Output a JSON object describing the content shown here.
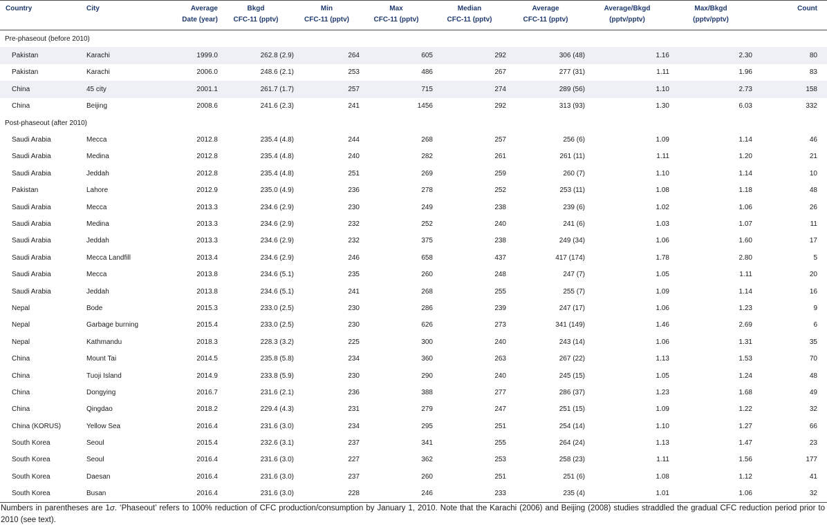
{
  "table": {
    "header_row1": [
      "Country",
      "City",
      "Average",
      "Bkgd",
      "Min",
      "Max",
      "Median",
      "Average",
      "Average/Bkgd",
      "Max/Bkgd",
      "Count"
    ],
    "header_row2": [
      "",
      "",
      "Date (year)",
      "CFC-11 (pptv)",
      "CFC-11 (pptv)",
      "CFC-11 (pptv)",
      "CFC-11 (pptv)",
      "CFC-11 (pptv)",
      "(pptv/pptv)",
      "(pptv/pptv)",
      ""
    ],
    "section_pre": "Pre-phaseout (before 2010)",
    "section_post": "Post-phaseout (after 2010)",
    "pre_rows": [
      [
        "Pakistan",
        "Karachi",
        "1999.0",
        "262.8 (2.9)",
        "264",
        "605",
        "292",
        "306 (48)",
        "1.16",
        "2.30",
        "80"
      ],
      [
        "Pakistan",
        "Karachi",
        "2006.0",
        "248.6 (2.1)",
        "253",
        "486",
        "267",
        "277 (31)",
        "1.11",
        "1.96",
        "83"
      ],
      [
        "China",
        "45 city",
        "2001.1",
        "261.7 (1.7)",
        "257",
        "715",
        "274",
        "289 (56)",
        "1.10",
        "2.73",
        "158"
      ],
      [
        "China",
        "Beijing",
        "2008.6",
        "241.6 (2.3)",
        "241",
        "1456",
        "292",
        "313 (93)",
        "1.30",
        "6.03",
        "332"
      ]
    ],
    "post_rows": [
      [
        "Saudi Arabia",
        "Mecca",
        "2012.8",
        "235.4 (4.8)",
        "244",
        "268",
        "257",
        "256 (6)",
        "1.09",
        "1.14",
        "46"
      ],
      [
        "Saudi Arabia",
        "Medina",
        "2012.8",
        "235.4 (4.8)",
        "240",
        "282",
        "261",
        "261 (11)",
        "1.11",
        "1.20",
        "21"
      ],
      [
        "Saudi Arabia",
        "Jeddah",
        "2012.8",
        "235.4 (4.8)",
        "251",
        "269",
        "259",
        "260 (7)",
        "1.10",
        "1.14",
        "10"
      ],
      [
        "Pakistan",
        "Lahore",
        "2012.9",
        "235.0 (4.9)",
        "236",
        "278",
        "252",
        "253 (11)",
        "1.08",
        "1.18",
        "48"
      ],
      [
        "Saudi Arabia",
        "Mecca",
        "2013.3",
        "234.6 (2.9)",
        "230",
        "249",
        "238",
        "239 (6)",
        "1.02",
        "1.06",
        "26"
      ],
      [
        "Saudi Arabia",
        "Medina",
        "2013.3",
        "234.6 (2.9)",
        "232",
        "252",
        "240",
        "241 (6)",
        "1.03",
        "1.07",
        "11"
      ],
      [
        "Saudi Arabia",
        "Jeddah",
        "2013.3",
        "234.6 (2.9)",
        "232",
        "375",
        "238",
        "249 (34)",
        "1.06",
        "1.60",
        "17"
      ],
      [
        "Saudi Arabia",
        "Mecca Landfill",
        "2013.4",
        "234.6 (2.9)",
        "246",
        "658",
        "437",
        "417 (174)",
        "1.78",
        "2.80",
        "5"
      ],
      [
        "Saudi Arabia",
        "Mecca",
        "2013.8",
        "234.6 (5.1)",
        "235",
        "260",
        "248",
        "247 (7)",
        "1.05",
        "1.11",
        "20"
      ],
      [
        "Saudi Arabia",
        "Jeddah",
        "2013.8",
        "234.6 (5.1)",
        "241",
        "268",
        "255",
        "255 (7)",
        "1.09",
        "1.14",
        "16"
      ],
      [
        "Nepal",
        "Bode",
        "2015.3",
        "233.0 (2.5)",
        "230",
        "286",
        "239",
        "247 (17)",
        "1.06",
        "1.23",
        "9"
      ],
      [
        "Nepal",
        "Garbage burning",
        "2015.4",
        "233.0 (2.5)",
        "230",
        "626",
        "273",
        "341 (149)",
        "1.46",
        "2.69",
        "6"
      ],
      [
        "Nepal",
        "Kathmandu",
        "2018.3",
        "228.3 (3.2)",
        "225",
        "300",
        "240",
        "243 (14)",
        "1.06",
        "1.31",
        "35"
      ],
      [
        "China",
        "Mount Tai",
        "2014.5",
        "235.8 (5.8)",
        "234",
        "360",
        "263",
        "267 (22)",
        "1.13",
        "1.53",
        "70"
      ],
      [
        "China",
        "Tuoji Island",
        "2014.9",
        "233.8 (5.9)",
        "230",
        "290",
        "240",
        "245 (15)",
        "1.05",
        "1.24",
        "48"
      ],
      [
        "China",
        "Dongying",
        "2016.7",
        "231.6 (2.1)",
        "236",
        "388",
        "277",
        "286 (37)",
        "1.23",
        "1.68",
        "49"
      ],
      [
        "China",
        "Qingdao",
        "2018.2",
        "229.4 (4.3)",
        "231",
        "279",
        "247",
        "251 (15)",
        "1.09",
        "1.22",
        "32"
      ],
      [
        "China (KORUS)",
        "Yellow Sea",
        "2016.4",
        "231.6 (3.0)",
        "234",
        "295",
        "251",
        "254 (14)",
        "1.10",
        "1.27",
        "66"
      ],
      [
        "South Korea",
        "Seoul",
        "2015.4",
        "232.6 (3.1)",
        "237",
        "341",
        "255",
        "264 (24)",
        "1.13",
        "1.47",
        "23"
      ],
      [
        "South Korea",
        "Seoul",
        "2016.4",
        "231.6 (3.0)",
        "227",
        "362",
        "253",
        "258 (23)",
        "1.11",
        "1.56",
        "177"
      ],
      [
        "South Korea",
        "Daesan",
        "2016.4",
        "231.6 (3.0)",
        "237",
        "260",
        "251",
        "251 (6)",
        "1.08",
        "1.12",
        "41"
      ],
      [
        "South Korea",
        "Busan",
        "2016.4",
        "231.6 (3.0)",
        "228",
        "246",
        "233",
        "235 (4)",
        "1.01",
        "1.06",
        "32"
      ]
    ]
  },
  "footnote": {
    "part1": "Numbers in parentheses are 1",
    "sigma": "σ",
    "part2": ". ‘Phaseout’ refers to 100% reduction of CFC production/consumption by January 1, 2010. Note that the Karachi (2006) and Beijing (2008) studies straddled the gradual CFC reduction period prior to 2010 (see text)."
  }
}
